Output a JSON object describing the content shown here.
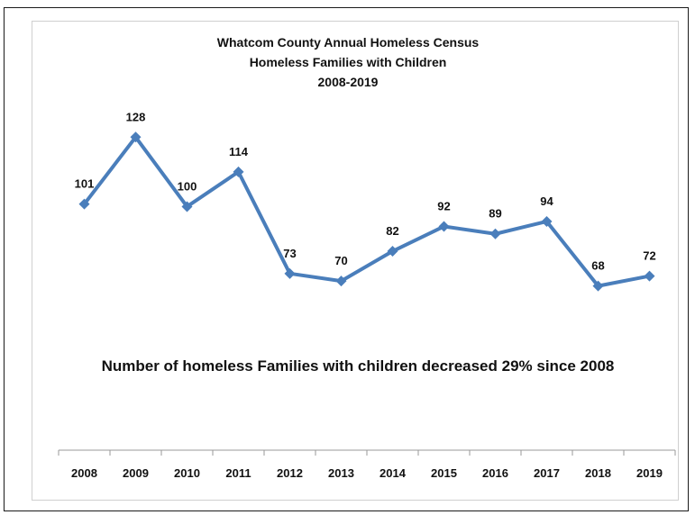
{
  "chart_data": {
    "type": "line",
    "title": "Whatcom County Annual Homeless Census",
    "subtitle": "Homeless Families with Children",
    "subtitle2": "2008-2019",
    "categories": [
      "2008",
      "2009",
      "2010",
      "2011",
      "2012",
      "2013",
      "2014",
      "2015",
      "2016",
      "2017",
      "2018",
      "2019"
    ],
    "series": [
      {
        "values": [
          101,
          128,
          100,
          114,
          73,
          70,
          82,
          92,
          89,
          94,
          68,
          72
        ]
      }
    ],
    "annotation": "Number of homeless Families with children decreased 29% since 2008",
    "ylim": [
      0,
      150
    ],
    "grid": false,
    "legend": "none",
    "line_color": "#4a7ebb",
    "marker": "diamond"
  }
}
